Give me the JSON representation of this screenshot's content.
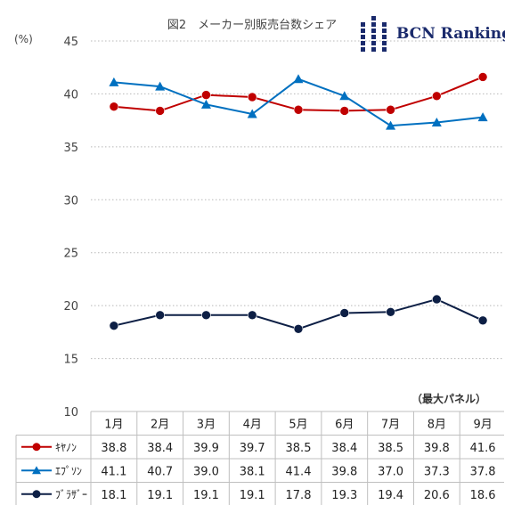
{
  "chart_data": {
    "type": "line",
    "title": "図2　メーカー別販売台数シェア",
    "ylabel": "(%)",
    "ylim": [
      10,
      45
    ],
    "yticks": [
      10,
      15,
      20,
      25,
      30,
      35,
      40,
      45
    ],
    "grid": true,
    "note": "（最大パネル）",
    "categories": [
      "1月",
      "2月",
      "3月",
      "4月",
      "5月",
      "6月",
      "7月",
      "8月",
      "9月"
    ],
    "series": [
      {
        "name": "ｷﾔﾉﾝ",
        "color": "#c00000",
        "marker": "circle",
        "values": [
          38.8,
          38.4,
          39.9,
          39.7,
          38.5,
          38.4,
          38.5,
          39.8,
          41.6
        ],
        "labels": [
          "38.8",
          "38.4",
          "39.9",
          "39.7",
          "38.5",
          "38.4",
          "38.5",
          "39.8",
          "41.6"
        ]
      },
      {
        "name": "ｴﾌﾟｿﾝ",
        "color": "#0070c0",
        "marker": "triangle",
        "values": [
          41.1,
          40.7,
          39.0,
          38.1,
          41.4,
          39.8,
          37.0,
          37.3,
          37.8
        ],
        "labels": [
          "41.1",
          "40.7",
          "39.0",
          "38.1",
          "41.4",
          "39.8",
          "37.0",
          "37.3",
          "37.8"
        ]
      },
      {
        "name": "ﾌﾞﾗｻﾞｰ",
        "color": "#0d1f45",
        "marker": "circle",
        "values": [
          18.1,
          19.1,
          19.1,
          19.1,
          17.8,
          19.3,
          19.4,
          20.6,
          18.6
        ],
        "labels": [
          "18.1",
          "19.1",
          "19.1",
          "19.1",
          "17.8",
          "19.3",
          "19.4",
          "20.6",
          "18.6"
        ]
      }
    ]
  },
  "logo": {
    "text": "BCN Ranking",
    "color": "#1a2a6c"
  }
}
